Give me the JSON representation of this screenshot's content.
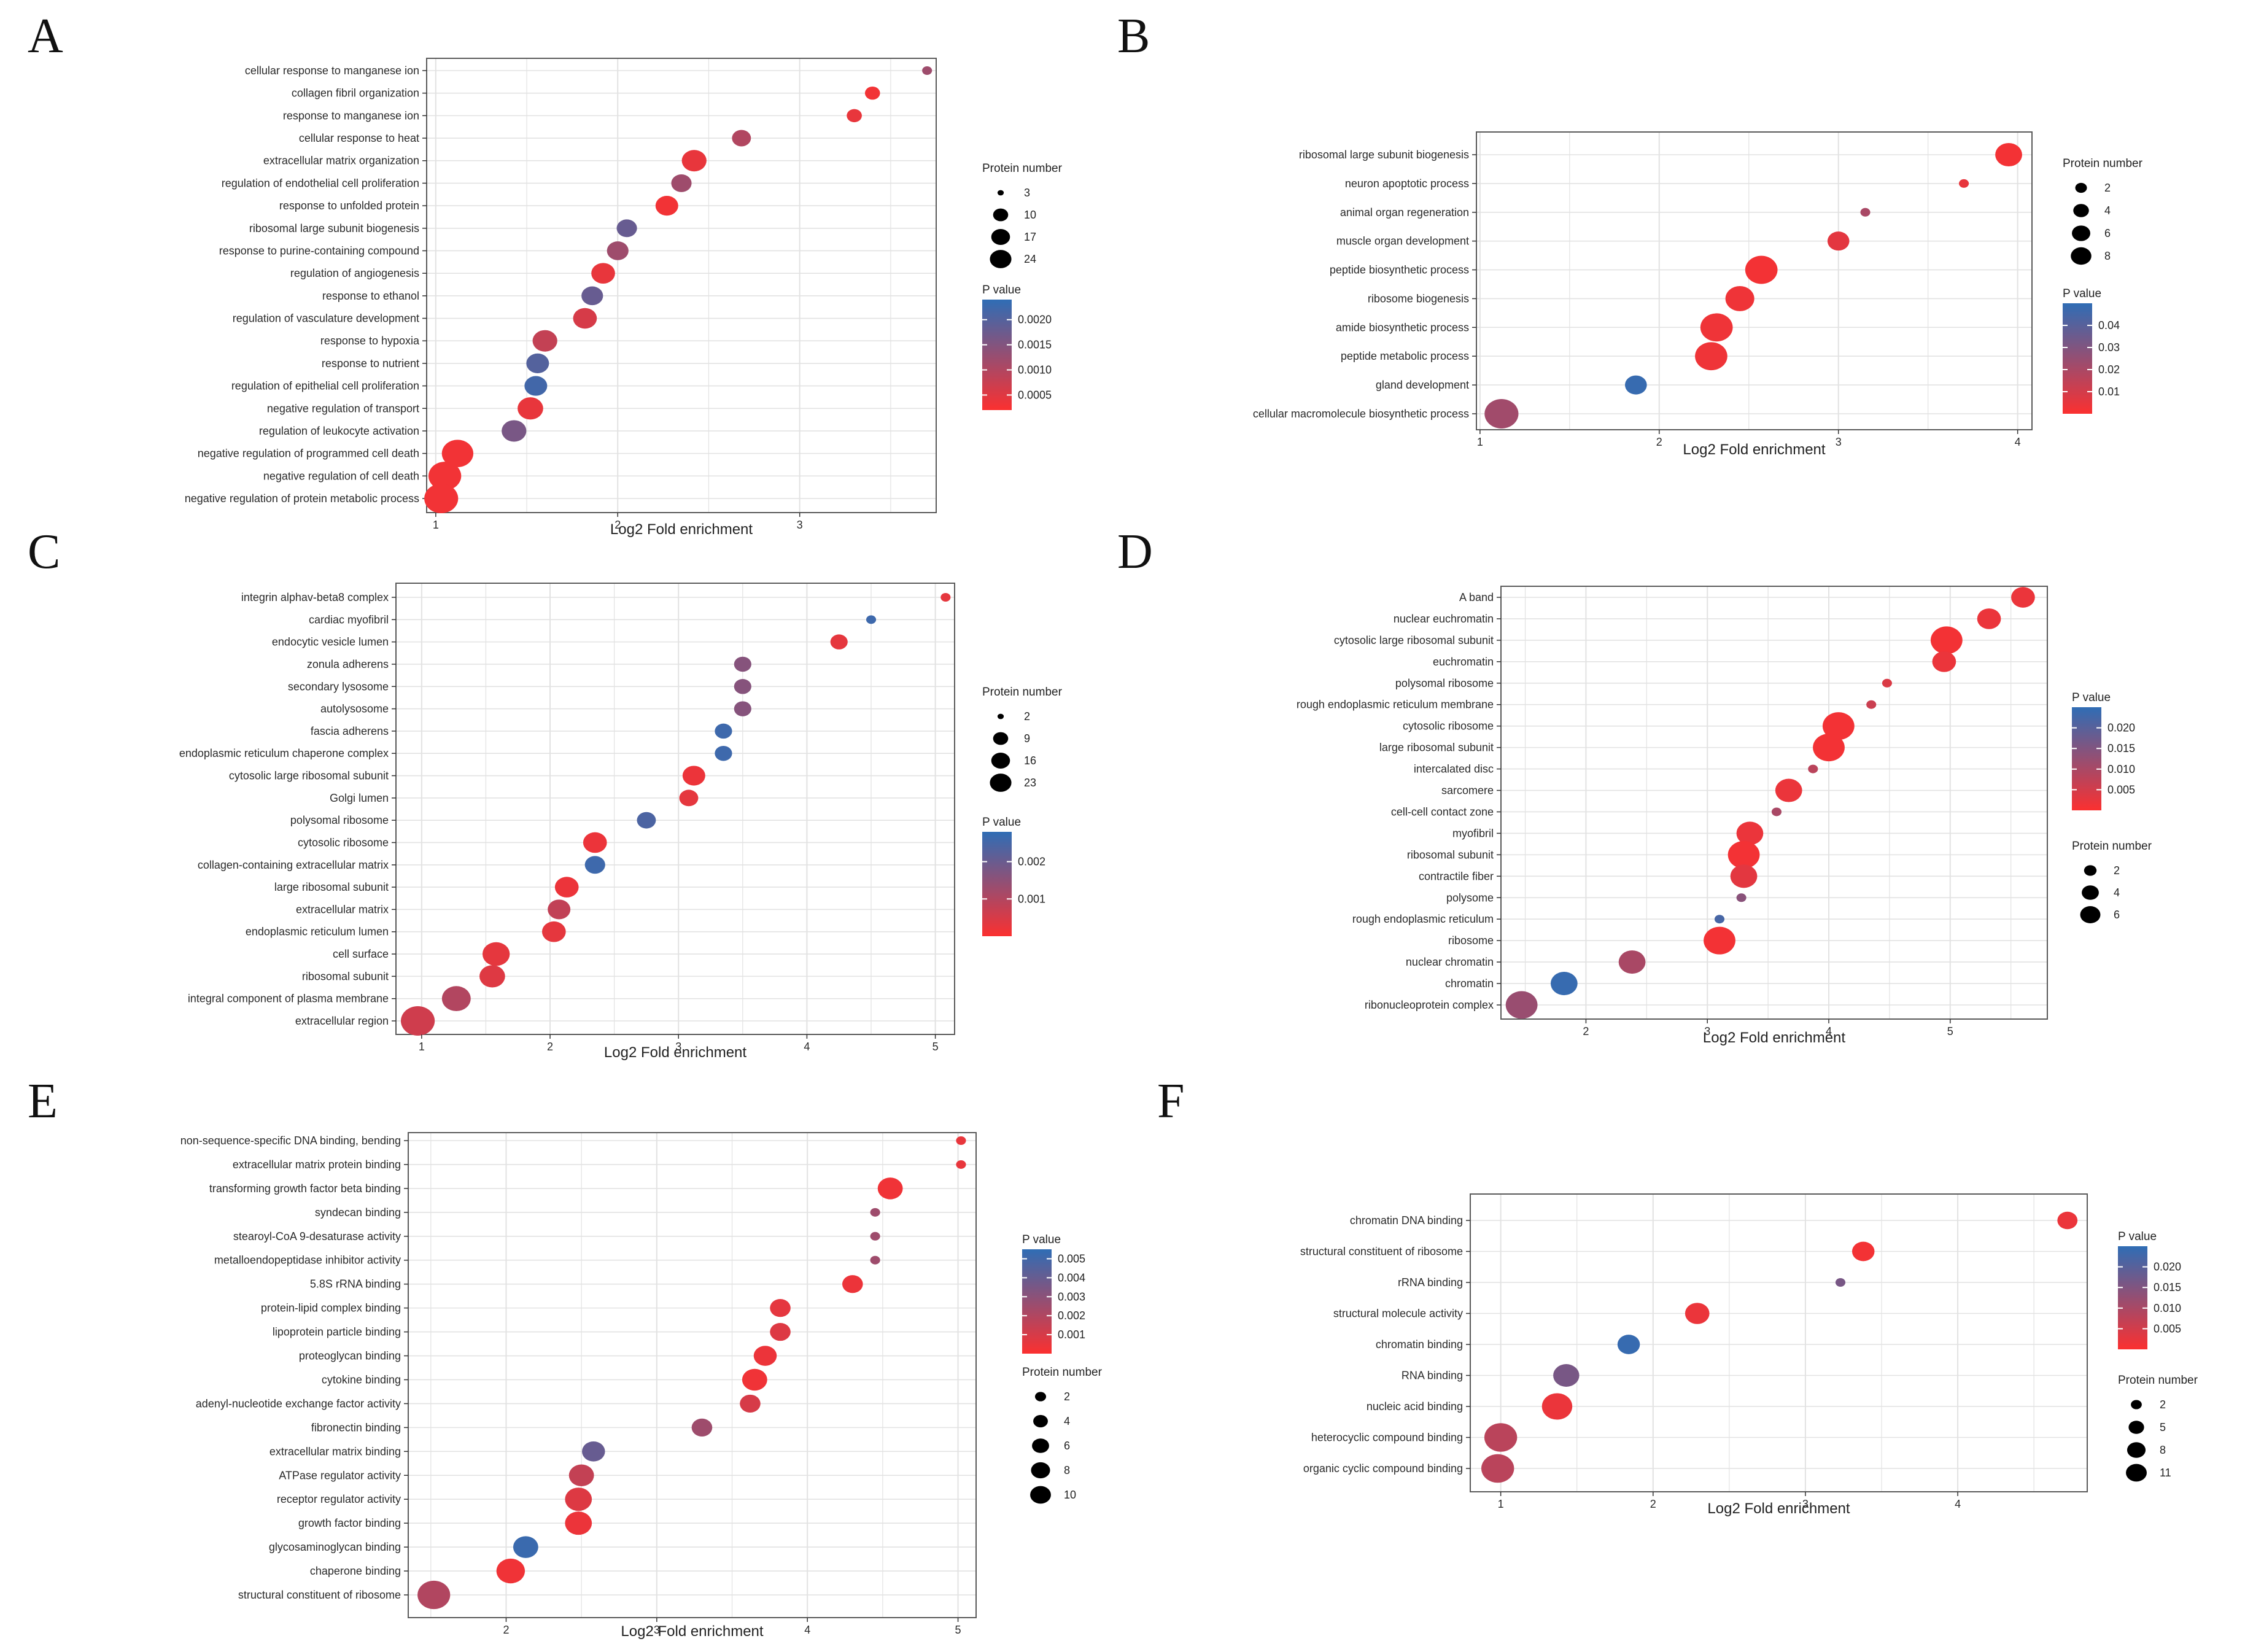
{
  "figure": {
    "colors": {
      "low_p": "#fb3030",
      "high_p": "#2f6db5",
      "grid": "#e2e2e2",
      "frame": "#5a5a5a"
    },
    "size_legend_title": "Protein number",
    "color_legend_title": "P value"
  },
  "chart_data": [
    {
      "panel": "A",
      "type": "scatter",
      "xlabel": "Log2 Fold enrichment",
      "xlim": [
        0.95,
        3.75
      ],
      "xticks": [
        1,
        2,
        3
      ],
      "size_ticks": [
        3,
        10,
        17,
        24
      ],
      "size_range": [
        3,
        24
      ],
      "color_ticks": [
        "0.0020",
        "0.0015",
        "0.0010",
        "0.0005"
      ],
      "color_tick_values": [
        0.002,
        0.0015,
        0.001,
        0.0005
      ],
      "color_range": [
        0.0002,
        0.0024
      ],
      "terms": [
        {
          "label": "cellular response to manganese ion",
          "x": 3.7,
          "n": 3,
          "p": 0.0012
        },
        {
          "label": "collagen fibril organization",
          "x": 3.4,
          "n": 4,
          "p": 0.0003
        },
        {
          "label": "response to manganese ion",
          "x": 3.3,
          "n": 4,
          "p": 0.0004
        },
        {
          "label": "cellular response to heat",
          "x": 2.68,
          "n": 6,
          "p": 0.001
        },
        {
          "label": "extracellular matrix organization",
          "x": 2.42,
          "n": 11,
          "p": 0.0004
        },
        {
          "label": "regulation of endothelial cell proliferation",
          "x": 2.35,
          "n": 7,
          "p": 0.0012
        },
        {
          "label": "response to unfolded protein",
          "x": 2.27,
          "n": 9,
          "p": 0.0003
        },
        {
          "label": "ribosomal large subunit biogenesis",
          "x": 2.05,
          "n": 7,
          "p": 0.0018
        },
        {
          "label": "response to purine-containing compound",
          "x": 2.0,
          "n": 8,
          "p": 0.0012
        },
        {
          "label": "regulation of angiogenesis",
          "x": 1.92,
          "n": 10,
          "p": 0.0004
        },
        {
          "label": "response to ethanol",
          "x": 1.86,
          "n": 8,
          "p": 0.0018
        },
        {
          "label": "regulation of vasculature development",
          "x": 1.82,
          "n": 10,
          "p": 0.0006
        },
        {
          "label": "response to hypoxia",
          "x": 1.6,
          "n": 11,
          "p": 0.0008
        },
        {
          "label": "response to nutrient",
          "x": 1.56,
          "n": 9,
          "p": 0.002
        },
        {
          "label": "regulation of epithelial cell proliferation",
          "x": 1.55,
          "n": 9,
          "p": 0.0022
        },
        {
          "label": "negative regulation of transport",
          "x": 1.52,
          "n": 12,
          "p": 0.0004
        },
        {
          "label": "regulation of leukocyte activation",
          "x": 1.43,
          "n": 11,
          "p": 0.0016
        },
        {
          "label": "negative regulation of programmed cell death",
          "x": 1.12,
          "n": 20,
          "p": 0.0003
        },
        {
          "label": "negative regulation of cell death",
          "x": 1.05,
          "n": 22,
          "p": 0.0003
        },
        {
          "label": "negative regulation of protein metabolic process",
          "x": 1.03,
          "n": 24,
          "p": 0.0003
        }
      ]
    },
    {
      "panel": "B",
      "type": "scatter",
      "xlabel": "Log2 Fold enrichment",
      "xlim": [
        0.98,
        4.08
      ],
      "xticks": [
        1,
        2,
        3,
        4
      ],
      "size_ticks": [
        2,
        4,
        6,
        8
      ],
      "size_range": [
        1,
        9
      ],
      "color_ticks": [
        "0.04",
        "0.03",
        "0.02",
        "0.01"
      ],
      "color_tick_values": [
        0.04,
        0.03,
        0.02,
        0.01
      ],
      "color_range": [
        0.0,
        0.05
      ],
      "terms": [
        {
          "label": "ribosomal large subunit biogenesis",
          "x": 3.95,
          "n": 5,
          "p": 0.002
        },
        {
          "label": "neuron apoptotic process",
          "x": 3.7,
          "n": 1,
          "p": 0.005
        },
        {
          "label": "animal organ regeneration",
          "x": 3.15,
          "n": 1,
          "p": 0.02
        },
        {
          "label": "muscle organ development",
          "x": 3.0,
          "n": 3,
          "p": 0.006
        },
        {
          "label": "peptide biosynthetic process",
          "x": 2.57,
          "n": 8,
          "p": 0.002
        },
        {
          "label": "ribosome biogenesis",
          "x": 2.45,
          "n": 6,
          "p": 0.003
        },
        {
          "label": "amide biosynthetic process",
          "x": 2.32,
          "n": 8,
          "p": 0.003
        },
        {
          "label": "peptide metabolic process",
          "x": 2.29,
          "n": 8,
          "p": 0.003
        },
        {
          "label": "gland development",
          "x": 1.87,
          "n": 3,
          "p": 0.048
        },
        {
          "label": "cellular macromolecule biosynthetic process",
          "x": 1.12,
          "n": 9,
          "p": 0.022
        }
      ]
    },
    {
      "panel": "C",
      "type": "scatter",
      "xlabel": "Log2 Fold enrichment",
      "xlim": [
        0.8,
        5.15
      ],
      "xticks": [
        1,
        2,
        3,
        4,
        5
      ],
      "size_ticks": [
        2,
        9,
        16,
        23
      ],
      "size_range": [
        2,
        23
      ],
      "color_ticks": [
        "0.002",
        "0.001"
      ],
      "color_tick_values": [
        0.002,
        0.001
      ],
      "color_range": [
        0.0,
        0.0028
      ],
      "terms": [
        {
          "label": "integrin alphav-beta8 complex",
          "x": 5.08,
          "n": 2,
          "p": 0.0003
        },
        {
          "label": "cardiac myofibril",
          "x": 4.5,
          "n": 2,
          "p": 0.0026
        },
        {
          "label": "endocytic vesicle lumen",
          "x": 4.25,
          "n": 4,
          "p": 0.0003
        },
        {
          "label": "zonula adherens",
          "x": 3.5,
          "n": 4,
          "p": 0.0016
        },
        {
          "label": "secondary lysosome",
          "x": 3.5,
          "n": 4,
          "p": 0.0016
        },
        {
          "label": "autolysosome",
          "x": 3.5,
          "n": 4,
          "p": 0.0016
        },
        {
          "label": "fascia adherens",
          "x": 3.35,
          "n": 4,
          "p": 0.0026
        },
        {
          "label": "endoplasmic reticulum chaperone complex",
          "x": 3.35,
          "n": 4,
          "p": 0.0026
        },
        {
          "label": "cytosolic large ribosomal subunit",
          "x": 3.12,
          "n": 8,
          "p": 0.0002
        },
        {
          "label": "Golgi lumen",
          "x": 3.08,
          "n": 5,
          "p": 0.0003
        },
        {
          "label": "polysomal ribosome",
          "x": 2.75,
          "n": 5,
          "p": 0.0024
        },
        {
          "label": "cytosolic ribosome",
          "x": 2.35,
          "n": 9,
          "p": 0.0002
        },
        {
          "label": "collagen-containing extracellular matrix",
          "x": 2.35,
          "n": 6,
          "p": 0.0026
        },
        {
          "label": "large ribosomal subunit",
          "x": 2.13,
          "n": 9,
          "p": 0.0002
        },
        {
          "label": "extracellular matrix",
          "x": 2.07,
          "n": 8,
          "p": 0.0008
        },
        {
          "label": "endoplasmic reticulum lumen",
          "x": 2.03,
          "n": 9,
          "p": 0.0003
        },
        {
          "label": "cell surface",
          "x": 1.58,
          "n": 13,
          "p": 0.0003
        },
        {
          "label": "ribosomal subunit",
          "x": 1.55,
          "n": 11,
          "p": 0.0004
        },
        {
          "label": "integral component of plasma membrane",
          "x": 1.27,
          "n": 15,
          "p": 0.001
        },
        {
          "label": "extracellular region",
          "x": 0.97,
          "n": 23,
          "p": 0.0006
        }
      ]
    },
    {
      "panel": "D",
      "type": "scatter",
      "xlabel": "Log2 Fold enrichment",
      "xlim": [
        1.3,
        5.8
      ],
      "xticks": [
        2,
        3,
        4,
        5
      ],
      "size_ticks": [
        2,
        4,
        6
      ],
      "size_range": [
        1,
        7
      ],
      "color_ticks": [
        "0.020",
        "0.015",
        "0.010",
        "0.005"
      ],
      "color_tick_values": [
        0.02,
        0.015,
        0.01,
        0.005
      ],
      "color_range": [
        0.0,
        0.025
      ],
      "terms": [
        {
          "label": "A band",
          "x": 5.6,
          "n": 3,
          "p": 0.002
        },
        {
          "label": "nuclear euchromatin",
          "x": 5.32,
          "n": 3,
          "p": 0.002
        },
        {
          "label": "cytosolic large ribosomal subunit",
          "x": 4.97,
          "n": 6,
          "p": 0.001
        },
        {
          "label": "euchromatin",
          "x": 4.95,
          "n": 3,
          "p": 0.002
        },
        {
          "label": "polysomal ribosome",
          "x": 4.48,
          "n": 1,
          "p": 0.004
        },
        {
          "label": "rough endoplasmic reticulum membrane",
          "x": 4.35,
          "n": 1,
          "p": 0.006
        },
        {
          "label": "cytosolic ribosome",
          "x": 4.08,
          "n": 6,
          "p": 0.001
        },
        {
          "label": "large ribosomal subunit",
          "x": 4.0,
          "n": 6,
          "p": 0.001
        },
        {
          "label": "intercalated disc",
          "x": 3.87,
          "n": 1,
          "p": 0.008
        },
        {
          "label": "sarcomere",
          "x": 3.67,
          "n": 4,
          "p": 0.002
        },
        {
          "label": "cell-cell contact zone",
          "x": 3.57,
          "n": 1,
          "p": 0.01
        },
        {
          "label": "myofibril",
          "x": 3.35,
          "n": 4,
          "p": 0.002
        },
        {
          "label": "ribosomal subunit",
          "x": 3.3,
          "n": 6,
          "p": 0.001
        },
        {
          "label": "contractile fiber",
          "x": 3.3,
          "n": 4,
          "p": 0.003
        },
        {
          "label": "polysome",
          "x": 3.28,
          "n": 1,
          "p": 0.014
        },
        {
          "label": "rough endoplasmic reticulum",
          "x": 3.1,
          "n": 1,
          "p": 0.022
        },
        {
          "label": "ribosome",
          "x": 3.1,
          "n": 6,
          "p": 0.001
        },
        {
          "label": "nuclear chromatin",
          "x": 2.38,
          "n": 4,
          "p": 0.01
        },
        {
          "label": "chromatin",
          "x": 1.82,
          "n": 4,
          "p": 0.024
        },
        {
          "label": "ribonucleoprotein complex",
          "x": 1.47,
          "n": 6,
          "p": 0.012
        }
      ]
    },
    {
      "panel": "E",
      "type": "scatter",
      "xlabel": "Log2 Fold enrichment",
      "xlim": [
        1.35,
        5.12
      ],
      "xticks": [
        2,
        3,
        4,
        5
      ],
      "size_ticks": [
        2,
        4,
        6,
        8,
        10
      ],
      "size_range": [
        1,
        11
      ],
      "color_ticks": [
        "0.005",
        "0.004",
        "0.003",
        "0.002",
        "0.001"
      ],
      "color_tick_values": [
        0.005,
        0.004,
        0.003,
        0.002,
        0.001
      ],
      "color_range": [
        0.0,
        0.0055
      ],
      "terms": [
        {
          "label": "non-sequence-specific DNA binding, bending",
          "x": 5.02,
          "n": 1,
          "p": 0.0005
        },
        {
          "label": "extracellular matrix protein binding",
          "x": 5.02,
          "n": 1,
          "p": 0.0005
        },
        {
          "label": "transforming growth factor beta binding",
          "x": 4.55,
          "n": 5,
          "p": 0.0003
        },
        {
          "label": "syndecan binding",
          "x": 4.45,
          "n": 1,
          "p": 0.0025
        },
        {
          "label": "stearoyl-CoA 9-desaturase activity",
          "x": 4.45,
          "n": 1,
          "p": 0.0025
        },
        {
          "label": "metalloendopeptidase inhibitor activity",
          "x": 4.45,
          "n": 1,
          "p": 0.0025
        },
        {
          "label": "5.8S rRNA binding",
          "x": 4.3,
          "n": 3,
          "p": 0.0004
        },
        {
          "label": "protein-lipid complex binding",
          "x": 3.82,
          "n": 3,
          "p": 0.0006
        },
        {
          "label": "lipoprotein particle binding",
          "x": 3.82,
          "n": 3,
          "p": 0.0008
        },
        {
          "label": "proteoglycan binding",
          "x": 3.72,
          "n": 4,
          "p": 0.0004
        },
        {
          "label": "cytokine binding",
          "x": 3.65,
          "n": 5,
          "p": 0.0003
        },
        {
          "label": "adenyl-nucleotide exchange factor activity",
          "x": 3.62,
          "n": 3,
          "p": 0.001
        },
        {
          "label": "fibronectin binding",
          "x": 3.3,
          "n": 3,
          "p": 0.0025
        },
        {
          "label": "extracellular matrix binding",
          "x": 2.58,
          "n": 4,
          "p": 0.004
        },
        {
          "label": "ATPase regulator activity",
          "x": 2.5,
          "n": 5,
          "p": 0.0015
        },
        {
          "label": "receptor regulator activity",
          "x": 2.48,
          "n": 6,
          "p": 0.0008
        },
        {
          "label": "growth factor binding",
          "x": 2.48,
          "n": 6,
          "p": 0.0004
        },
        {
          "label": "glycosaminoglycan binding",
          "x": 2.13,
          "n": 5,
          "p": 0.0052
        },
        {
          "label": "chaperone binding",
          "x": 2.03,
          "n": 7,
          "p": 0.0003
        },
        {
          "label": "structural constituent of ribosome",
          "x": 1.52,
          "n": 10,
          "p": 0.002
        }
      ]
    },
    {
      "panel": "F",
      "type": "scatter",
      "xlabel": "Log2 Fold enrichment",
      "xlim": [
        0.8,
        4.85
      ],
      "xticks": [
        1,
        2,
        3,
        4
      ],
      "size_ticks": [
        2,
        5,
        8,
        11
      ],
      "size_range": [
        1,
        12
      ],
      "color_ticks": [
        "0.020",
        "0.015",
        "0.010",
        "0.005"
      ],
      "color_tick_values": [
        0.02,
        0.015,
        0.01,
        0.005
      ],
      "color_range": [
        0.0,
        0.025
      ],
      "terms": [
        {
          "label": "chromatin DNA binding",
          "x": 4.72,
          "n": 3,
          "p": 0.002
        },
        {
          "label": "structural constituent of ribosome",
          "x": 3.38,
          "n": 4,
          "p": 0.001
        },
        {
          "label": "rRNA binding",
          "x": 3.23,
          "n": 1,
          "p": 0.016
        },
        {
          "label": "structural molecule activity",
          "x": 2.29,
          "n": 5,
          "p": 0.002
        },
        {
          "label": "chromatin binding",
          "x": 1.84,
          "n": 4,
          "p": 0.024
        },
        {
          "label": "RNA binding",
          "x": 1.43,
          "n": 6,
          "p": 0.016
        },
        {
          "label": "nucleic acid binding",
          "x": 1.37,
          "n": 9,
          "p": 0.002
        },
        {
          "label": "heterocyclic compound binding",
          "x": 1.0,
          "n": 11,
          "p": 0.008
        },
        {
          "label": "organic cyclic compound binding",
          "x": 0.98,
          "n": 11,
          "p": 0.008
        }
      ]
    }
  ]
}
